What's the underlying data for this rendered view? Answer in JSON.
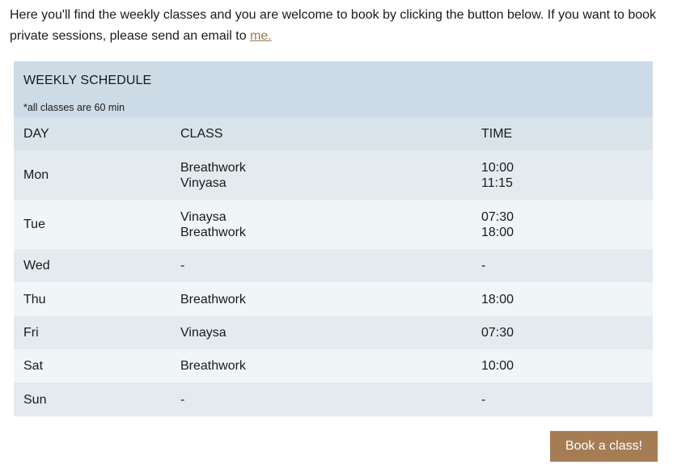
{
  "intro": {
    "text_before": "Here you'll find the weekly classes and you are welcome to book by clicking the button below. If you want to book private sessions, please send an email to ",
    "link_text": "me."
  },
  "schedule": {
    "title": "WEEKLY SCHEDULE",
    "note": "*all classes are 60 min",
    "columns": {
      "day": "DAY",
      "class": "CLASS",
      "time": "TIME"
    },
    "rows": [
      {
        "day": "Mon",
        "classes": [
          "Breathwork",
          "Vinyasa"
        ],
        "times": [
          "10:00",
          "11:15"
        ]
      },
      {
        "day": "Tue",
        "classes": [
          "Vinaysa",
          "Breathwork"
        ],
        "times": [
          "07:30",
          "18:00"
        ]
      },
      {
        "day": "Wed",
        "classes": [
          "-"
        ],
        "times": [
          "-"
        ]
      },
      {
        "day": "Thu",
        "classes": [
          "Breathwork"
        ],
        "times": [
          "18:00"
        ]
      },
      {
        "day": "Fri",
        "classes": [
          "Vinaysa"
        ],
        "times": [
          "07:30"
        ]
      },
      {
        "day": "Sat",
        "classes": [
          "Breathwork"
        ],
        "times": [
          "10:00"
        ]
      },
      {
        "day": "Sun",
        "classes": [
          "-"
        ],
        "times": [
          "-"
        ]
      }
    ]
  },
  "book_button": {
    "label": "Book a class!"
  },
  "colors": {
    "header_bg": "#cddbe6",
    "column_header_bg": "#d9e3ea",
    "row_a_bg": "#e4ebef",
    "row_b_bg": "#f0f5f8",
    "link": "#a07a55",
    "button_bg": "#a67c55"
  }
}
